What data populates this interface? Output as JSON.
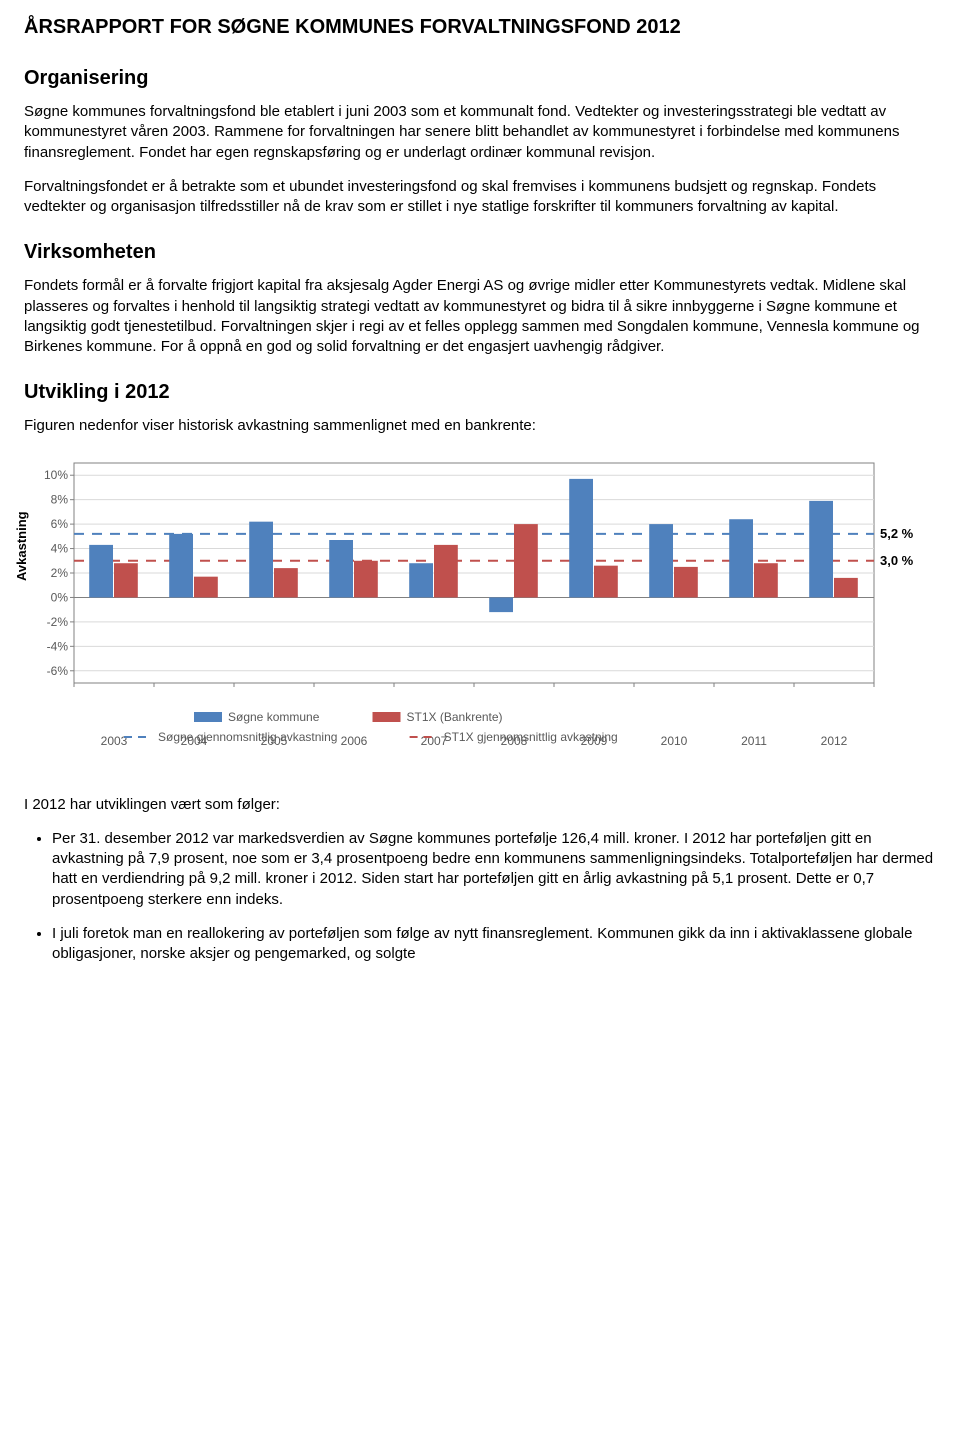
{
  "doc_title": "ÅRSRAPPORT FOR SØGNE KOMMUNES FORVALTNINGSFOND 2012",
  "sections": {
    "organisering": {
      "heading": "Organisering",
      "p1": "Søgne kommunes forvaltningsfond ble etablert i juni 2003 som et kommunalt fond. Vedtekter og investeringsstrategi ble vedtatt av kommunestyret våren 2003. Rammene for forvaltningen har senere blitt behandlet av kommunestyret i forbindelse med kommunens finansreglement. Fondet har egen regnskapsføring og er underlagt ordinær kommunal revisjon.",
      "p2": "Forvaltningsfondet er å betrakte som et ubundet investeringsfond og skal fremvises i kommunens budsjett og regnskap. Fondets vedtekter og organisasjon tilfredsstiller nå de krav som er stillet i nye statlige forskrifter til kommuners forvaltning av kapital."
    },
    "virksomheten": {
      "heading": "Virksomheten",
      "p1": "Fondets formål er å forvalte frigjort kapital fra aksjesalg Agder Energi AS og øvrige midler etter Kommunestyrets vedtak. Midlene skal plasseres og forvaltes i henhold til langsiktig strategi vedtatt av kommunestyret og bidra til å sikre innbyggerne i Søgne kommune et langsiktig godt tjenestetilbud. Forvaltningen skjer i regi av et felles opplegg sammen med Songdalen kommune, Vennesla kommune og Birkenes kommune. For å oppnå en god og solid forvaltning er det engasjert uavhengig rådgiver."
    },
    "utvikling": {
      "heading": "Utvikling i 2012",
      "intro": "Figuren nedenfor viser historisk avkastning sammenlignet med en bankrente:",
      "after_chart": "I 2012 har utviklingen vært som følger:",
      "bullet1": "Per 31. desember 2012 var markedsverdien av Søgne kommunes portefølje 126,4 mill. kroner. I 2012 har porteføljen gitt en avkastning på 7,9 prosent, noe som er 3,4 prosentpoeng bedre enn kommunens sammenligningsindeks. Totalporteføljen har dermed hatt en verdiendring på 9,2 mill. kroner i 2012. Siden start har porteføljen gitt en årlig avkastning på 5,1 prosent. Dette er 0,7 prosentpoeng sterkere enn indeks.",
      "bullet2": "I juli foretok man en reallokering av porteføljen som følge av nytt finansreglement. Kommunen gikk da inn i aktivaklassene globale obligasjoner, norske aksjer og pengemarked, og solgte"
    }
  },
  "chart": {
    "type": "bar",
    "ylabel": "Avkastning",
    "categories": [
      "2003",
      "2004",
      "2005",
      "2006",
      "2007",
      "2008",
      "2009",
      "2010",
      "2011",
      "2012"
    ],
    "series": [
      {
        "name": "Søgne kommune",
        "color": "#4f81bd",
        "values": [
          4.3,
          5.2,
          6.2,
          4.7,
          2.8,
          -1.2,
          9.7,
          6.0,
          6.4,
          7.9
        ]
      },
      {
        "name": "ST1X (Bankrente)",
        "color": "#c0504d",
        "values": [
          2.8,
          1.7,
          2.4,
          3.0,
          4.3,
          6.0,
          2.6,
          2.5,
          2.8,
          1.6
        ]
      }
    ],
    "ref_lines": [
      {
        "name": "Søgne gjennomsnittlig avkastning",
        "color": "#4f81bd",
        "value": 5.2,
        "label": "5,2 %"
      },
      {
        "name": "ST1X gjennomsnittlig avkastning",
        "color": "#c0504d",
        "value": 3.0,
        "label": "3,0 %"
      }
    ],
    "yticks": [
      -6,
      -4,
      -2,
      0,
      2,
      4,
      6,
      8,
      10
    ],
    "ytick_labels": [
      "-6%",
      "-4%",
      "-2%",
      "0%",
      "2%",
      "4%",
      "6%",
      "8%",
      "10%"
    ],
    "ylim": [
      -7,
      11
    ],
    "plot_bg": "#ffffff",
    "grid_color": "#d9d9d9",
    "axis_color": "#808080",
    "tick_font_size": 12,
    "legend_font_size": 12,
    "bar_group_width": 0.62
  }
}
